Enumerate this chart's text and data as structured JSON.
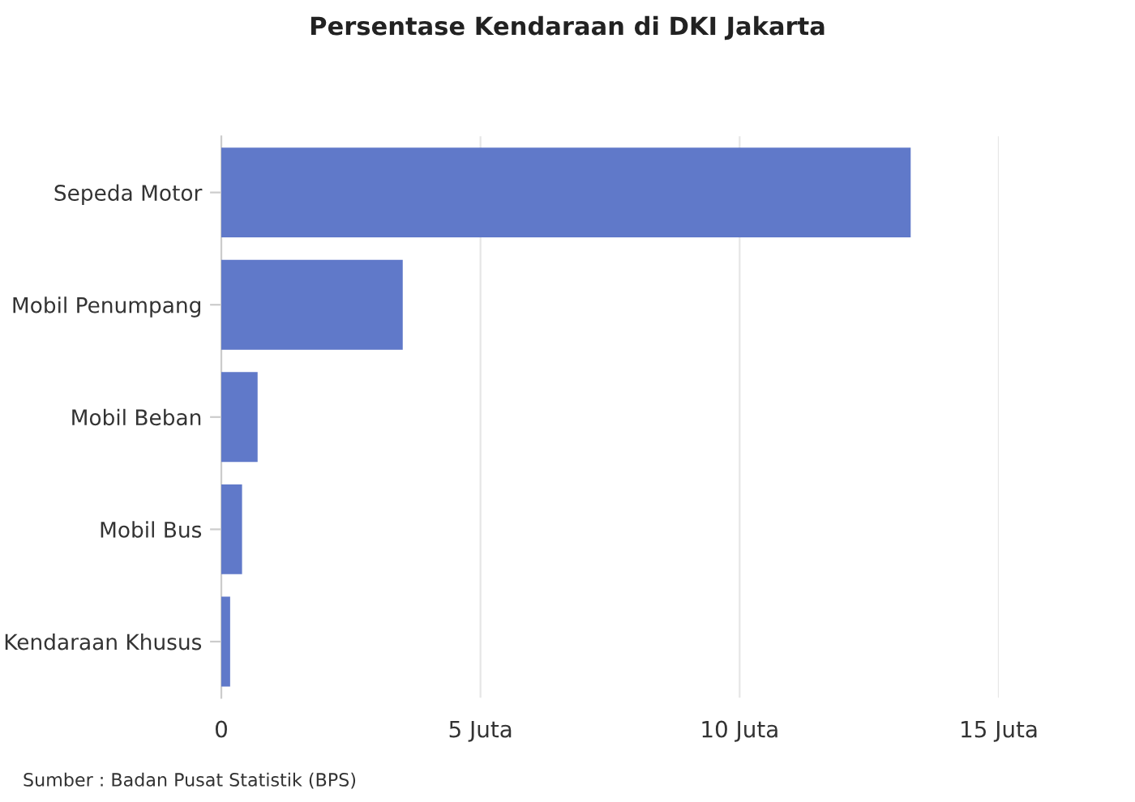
{
  "chart_data": {
    "type": "bar",
    "orientation": "horizontal",
    "title": "Persentase Kendaraan di DKI Jakarta",
    "categories": [
      "Sepeda Motor",
      "Mobil Penumpang",
      "Mobil Beban",
      "Mobil Bus",
      "Kendaraan Khusus"
    ],
    "series": [
      {
        "color": "#6079c9",
        "values": [
          13.3,
          3.5,
          0.7,
          0.4,
          0.17
        ]
      }
    ],
    "xlim": [
      0,
      15
    ],
    "xticks": [
      0,
      {
        "value": 5,
        "label": "5 Juta"
      },
      {
        "value": 10,
        "label": "10 Juta"
      },
      {
        "value": 15,
        "label": "15 Juta"
      }
    ],
    "grid": "x",
    "legend": false,
    "annotations": [
      "Sumber : Badan Pusat Statistik (BPS)"
    ]
  }
}
